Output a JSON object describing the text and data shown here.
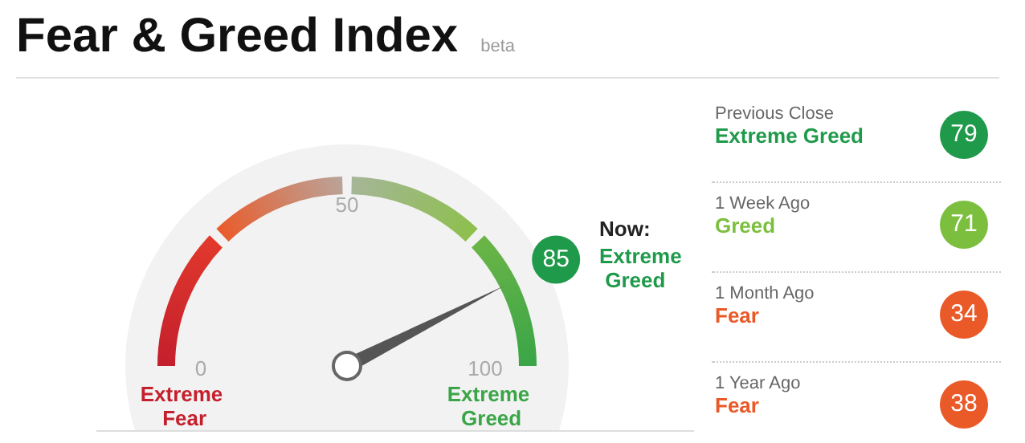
{
  "chart_data": [
    {
      "type": "other",
      "title": "Fear & Greed Index",
      "subtitle": "beta",
      "values": [
        85
      ],
      "data_labels": true,
      "color": "#1f9a4a",
      "annotations": [
        "0",
        "50",
        "100",
        "Now:",
        "Extreme Greed",
        "Extreme Fear",
        "Extreme Greed"
      ]
    },
    {
      "type": "other",
      "categories": [
        "Previous Close",
        "1 Week Ago",
        "1 Month Ago",
        "1 Year Ago"
      ],
      "values": [
        79,
        71,
        34,
        38
      ],
      "data_labels": true,
      "colors": [
        "#1f9a4a",
        "#7cbf3f",
        "#ea5a29",
        "#ea5a29"
      ],
      "annotations": [
        "Extreme Greed",
        "Greed",
        "Fear",
        "Fear"
      ]
    }
  ]
}
